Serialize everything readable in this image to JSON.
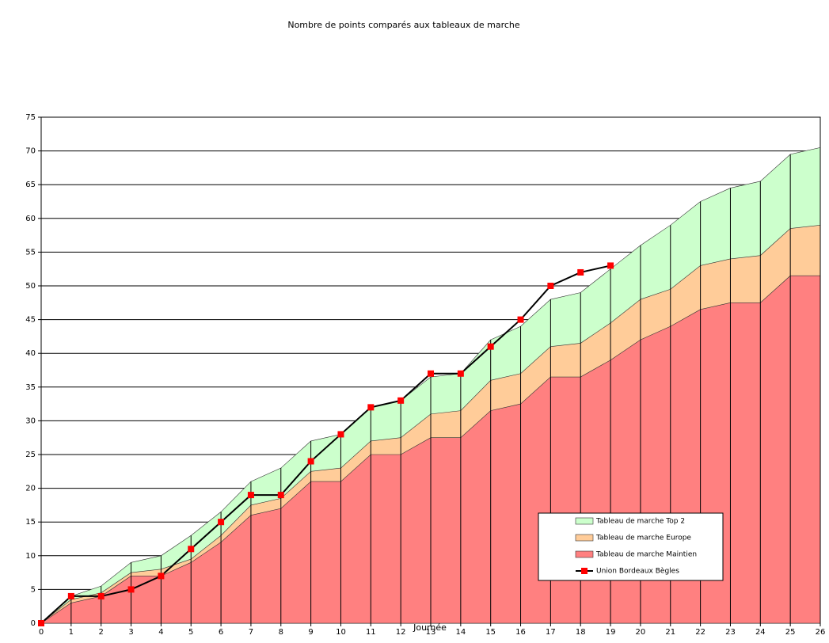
{
  "chart_data": {
    "type": "area-line",
    "title": "Nombre de points comparés aux tableaux de marche",
    "x_label": "Journée",
    "x": [
      0,
      1,
      2,
      3,
      4,
      5,
      6,
      7,
      8,
      9,
      10,
      11,
      12,
      13,
      14,
      15,
      16,
      17,
      18,
      19,
      20,
      21,
      22,
      23,
      24,
      25,
      26
    ],
    "xlim": [
      0,
      26
    ],
    "xticks": [
      0,
      1,
      2,
      3,
      4,
      5,
      6,
      7,
      8,
      9,
      10,
      11,
      12,
      13,
      14,
      15,
      16,
      17,
      18,
      19,
      20,
      21,
      22,
      23,
      24,
      25,
      26
    ],
    "ylim": [
      0,
      75
    ],
    "yticks": [
      0,
      5,
      10,
      15,
      20,
      25,
      30,
      35,
      40,
      45,
      50,
      55,
      60,
      65,
      70,
      75
    ],
    "grid": true,
    "series": [
      {
        "name": "Tableau de marche Top 2",
        "kind": "area",
        "color": "#ccffcc",
        "values": [
          0,
          4,
          5.5,
          9,
          10,
          13,
          16.5,
          21,
          23,
          27,
          28,
          32,
          33,
          36.5,
          37,
          42,
          44,
          48,
          49,
          52.5,
          56,
          59,
          62.5,
          64.5,
          65.5,
          69.5,
          70.5
        ]
      },
      {
        "name": "Tableau de marche Europe",
        "kind": "area",
        "color": "#ffcc99",
        "values": [
          0,
          3.5,
          4.5,
          7.5,
          8,
          9.5,
          13,
          17.5,
          18.5,
          22.5,
          23,
          27,
          27.5,
          31,
          31.5,
          36,
          37,
          41,
          41.5,
          44.5,
          48,
          49.5,
          53,
          54,
          54.5,
          58.5,
          59
        ]
      },
      {
        "name": "Tableau de marche Maintien",
        "kind": "area",
        "color": "#ff8080",
        "values": [
          0,
          3,
          4,
          7,
          7,
          9,
          12,
          16,
          17,
          21,
          21,
          25,
          25,
          27.5,
          27.5,
          31.5,
          32.5,
          36.5,
          36.5,
          39,
          42,
          44,
          46.5,
          47.5,
          47.5,
          51.5,
          51.5
        ]
      },
      {
        "name": "Union Bordeaux Bègles",
        "kind": "line",
        "color": "#ff0000",
        "values": [
          0,
          4,
          4,
          5,
          7,
          11,
          15,
          19,
          19,
          24,
          28,
          32,
          33,
          37,
          37,
          41,
          45,
          50,
          52,
          53,
          null,
          null,
          null,
          null,
          null,
          null,
          null
        ]
      }
    ]
  }
}
